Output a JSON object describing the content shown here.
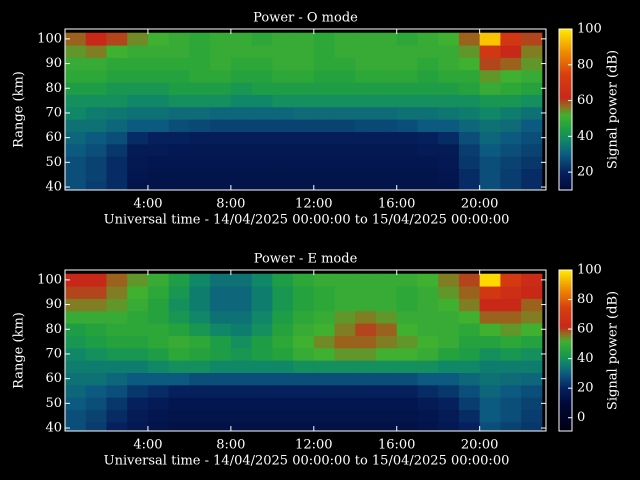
{
  "chart_data": [
    {
      "type": "heatmap",
      "title": "Power - O mode",
      "xlabel": "Universal time - 14/04/2025 00:00:00 to 15/04/2025 00:00:00",
      "ylabel": "Range (km)",
      "colorbar_label": "Signal power (dB)",
      "x": [
        0.5,
        1.5,
        2.5,
        3.5,
        4.5,
        5.5,
        6.5,
        7.5,
        8.5,
        9.5,
        10.5,
        11.5,
        12.5,
        13.5,
        14.5,
        15.5,
        16.5,
        17.5,
        18.5,
        19.5,
        20.5,
        21.5,
        22.5
      ],
      "y": [
        40,
        45,
        50,
        55,
        60,
        65,
        70,
        75,
        80,
        85,
        90,
        95,
        100
      ],
      "z": [
        [
          28,
          25,
          22,
          15,
          15,
          15,
          15,
          15,
          15,
          15,
          15,
          15,
          15,
          15,
          15,
          15,
          15,
          15,
          15,
          22,
          28,
          25,
          22
        ],
        [
          28,
          26,
          22,
          16,
          15,
          15,
          15,
          15,
          15,
          15,
          15,
          15,
          15,
          15,
          15,
          15,
          15,
          15,
          16,
          22,
          28,
          25,
          22
        ],
        [
          28,
          26,
          22,
          17,
          16,
          16,
          16,
          16,
          16,
          16,
          16,
          16,
          16,
          16,
          16,
          16,
          16,
          16,
          17,
          24,
          28,
          26,
          24
        ],
        [
          30,
          28,
          24,
          18,
          18,
          17,
          17,
          17,
          17,
          17,
          17,
          17,
          17,
          17,
          17,
          17,
          17,
          18,
          18,
          25,
          30,
          28,
          26
        ],
        [
          32,
          30,
          28,
          22,
          20,
          20,
          19,
          19,
          19,
          19,
          19,
          19,
          19,
          19,
          19,
          19,
          19,
          20,
          22,
          28,
          32,
          30,
          28
        ],
        [
          34,
          34,
          32,
          30,
          30,
          28,
          27,
          26,
          26,
          26,
          26,
          26,
          26,
          26,
          27,
          27,
          28,
          30,
          30,
          32,
          34,
          33,
          30
        ],
        [
          38,
          36,
          35,
          34,
          34,
          33,
          33,
          32,
          32,
          32,
          32,
          33,
          33,
          33,
          33,
          33,
          34,
          34,
          35,
          36,
          38,
          36,
          34
        ],
        [
          40,
          40,
          40,
          38,
          38,
          40,
          40,
          40,
          38,
          38,
          40,
          40,
          40,
          40,
          40,
          40,
          40,
          40,
          40,
          40,
          42,
          42,
          40
        ],
        [
          44,
          44,
          42,
          42,
          42,
          44,
          44,
          44,
          42,
          44,
          44,
          44,
          44,
          44,
          44,
          44,
          44,
          44,
          44,
          46,
          50,
          48,
          46
        ],
        [
          48,
          48,
          46,
          46,
          46,
          46,
          48,
          48,
          46,
          46,
          48,
          48,
          46,
          46,
          48,
          48,
          48,
          46,
          48,
          48,
          54,
          52,
          50
        ],
        [
          50,
          50,
          48,
          48,
          48,
          48,
          48,
          50,
          48,
          48,
          50,
          50,
          48,
          48,
          50,
          50,
          50,
          48,
          50,
          52,
          60,
          58,
          54
        ],
        [
          54,
          56,
          52,
          50,
          50,
          50,
          48,
          50,
          50,
          50,
          50,
          50,
          48,
          50,
          50,
          50,
          50,
          50,
          50,
          54,
          70,
          62,
          56
        ],
        [
          58,
          62,
          60,
          55,
          52,
          50,
          48,
          50,
          50,
          48,
          50,
          50,
          48,
          50,
          50,
          50,
          48,
          50,
          52,
          58,
          95,
          70,
          60
        ]
      ],
      "xlim": [
        0,
        23.2
      ],
      "xticks": [
        {
          "value": 4,
          "label": "4:00"
        },
        {
          "value": 8,
          "label": "8:00"
        },
        {
          "value": 12,
          "label": "12:00"
        },
        {
          "value": 16,
          "label": "16:00"
        },
        {
          "value": 20,
          "label": "20:00"
        }
      ],
      "ylim": [
        38.8,
        104
      ],
      "yticks": [
        40,
        50,
        60,
        70,
        80,
        90,
        100
      ],
      "clim": [
        10,
        100
      ],
      "cticks": [
        20,
        40,
        60,
        80,
        100
      ]
    },
    {
      "type": "heatmap",
      "title": "Power - E mode",
      "xlabel": "Universal time - 14/04/2025 00:00:00 to 15/04/2025 00:00:00",
      "ylabel": "Range (km)",
      "colorbar_label": "Signal power (dB)",
      "x": [
        0.5,
        1.5,
        2.5,
        3.5,
        4.5,
        5.5,
        6.5,
        7.5,
        8.5,
        9.5,
        10.5,
        11.5,
        12.5,
        13.5,
        14.5,
        15.5,
        16.5,
        17.5,
        18.5,
        19.5,
        20.5,
        21.5,
        22.5
      ],
      "y": [
        40,
        45,
        50,
        55,
        60,
        65,
        70,
        75,
        80,
        85,
        90,
        95,
        100
      ],
      "z": [
        [
          28,
          25,
          20,
          17,
          15,
          14,
          14,
          14,
          14,
          14,
          14,
          14,
          14,
          14,
          14,
          14,
          14,
          15,
          17,
          20,
          28,
          26,
          24
        ],
        [
          28,
          26,
          22,
          18,
          16,
          15,
          15,
          15,
          15,
          15,
          15,
          15,
          15,
          15,
          15,
          15,
          15,
          16,
          18,
          22,
          30,
          28,
          25
        ],
        [
          30,
          28,
          24,
          20,
          18,
          16,
          16,
          16,
          16,
          16,
          16,
          16,
          16,
          16,
          16,
          16,
          16,
          18,
          20,
          25,
          30,
          28,
          26
        ],
        [
          32,
          30,
          28,
          24,
          22,
          20,
          20,
          20,
          20,
          20,
          20,
          20,
          20,
          20,
          20,
          20,
          20,
          22,
          24,
          28,
          32,
          30,
          28
        ],
        [
          34,
          34,
          32,
          30,
          30,
          30,
          28,
          28,
          28,
          28,
          28,
          28,
          28,
          28,
          28,
          28,
          28,
          30,
          30,
          32,
          34,
          33,
          32
        ],
        [
          36,
          36,
          36,
          36,
          38,
          40,
          40,
          38,
          38,
          38,
          38,
          40,
          40,
          40,
          40,
          40,
          40,
          40,
          38,
          38,
          36,
          36,
          36
        ],
        [
          38,
          40,
          42,
          42,
          44,
          48,
          46,
          44,
          42,
          44,
          46,
          50,
          52,
          54,
          54,
          52,
          52,
          50,
          46,
          44,
          40,
          42,
          40
        ],
        [
          42,
          44,
          46,
          46,
          48,
          50,
          48,
          44,
          40,
          44,
          48,
          52,
          55,
          58,
          58,
          56,
          54,
          52,
          50,
          46,
          46,
          48,
          46
        ],
        [
          44,
          46,
          48,
          48,
          48,
          46,
          42,
          38,
          36,
          40,
          46,
          50,
          52,
          56,
          60,
          58,
          52,
          50,
          50,
          48,
          52,
          54,
          52
        ],
        [
          50,
          50,
          50,
          48,
          46,
          42,
          38,
          34,
          34,
          38,
          44,
          48,
          50,
          54,
          56,
          54,
          50,
          50,
          50,
          52,
          58,
          58,
          56
        ],
        [
          56,
          56,
          54,
          50,
          46,
          40,
          36,
          32,
          32,
          36,
          42,
          46,
          48,
          50,
          50,
          50,
          48,
          50,
          52,
          56,
          62,
          62,
          58
        ],
        [
          60,
          60,
          56,
          52,
          48,
          42,
          36,
          32,
          32,
          36,
          42,
          46,
          48,
          50,
          50,
          50,
          48,
          50,
          54,
          58,
          70,
          66,
          62
        ],
        [
          62,
          62,
          58,
          54,
          50,
          44,
          38,
          34,
          34,
          38,
          44,
          48,
          50,
          50,
          50,
          50,
          50,
          52,
          56,
          60,
          98,
          72,
          64
        ]
      ],
      "xlim": [
        0,
        23.2
      ],
      "xticks": [
        {
          "value": 4,
          "label": "4:00"
        },
        {
          "value": 8,
          "label": "8:00"
        },
        {
          "value": 12,
          "label": "12:00"
        },
        {
          "value": 16,
          "label": "16:00"
        },
        {
          "value": 20,
          "label": "20:00"
        }
      ],
      "ylim": [
        38.8,
        104
      ],
      "yticks": [
        40,
        50,
        60,
        70,
        80,
        90,
        100
      ],
      "clim": [
        -9,
        100
      ],
      "cticks": [
        0,
        20,
        40,
        60,
        80,
        100
      ]
    }
  ]
}
